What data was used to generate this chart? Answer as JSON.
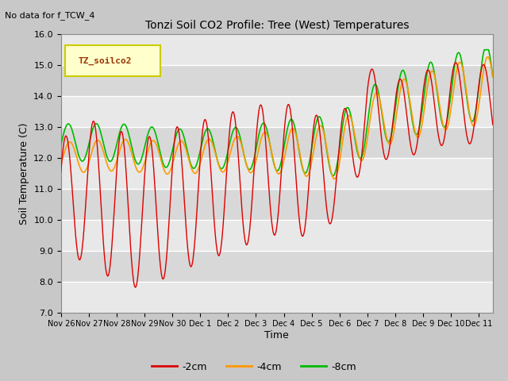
{
  "title": "Tonzi Soil CO2 Profile: Tree (West) Temperatures",
  "subtitle": "No data for f_TCW_4",
  "ylabel": "Soil Temperature (C)",
  "xlabel": "Time",
  "legend_label": "TZ_soilco2",
  "ylim": [
    7.0,
    16.0
  ],
  "yticks": [
    7.0,
    8.0,
    9.0,
    10.0,
    11.0,
    12.0,
    13.0,
    14.0,
    15.0,
    16.0
  ],
  "xtick_labels": [
    "Nov 26",
    "Nov 27",
    "Nov 28",
    "Nov 29",
    "Nov 30",
    "Dec 1",
    "Dec 2",
    "Dec 3",
    "Dec 4",
    "Dec 5",
    "Dec 6",
    "Dec 7",
    "Dec 8",
    "Dec 9",
    "Dec 10",
    "Dec 11"
  ],
  "line_colors": {
    "m2cm": "#dd0000",
    "m4cm": "#ff9900",
    "m8cm": "#00bb00"
  },
  "line_labels": [
    "-2cm",
    "-4cm",
    "-8cm"
  ],
  "legend_box_color": "#ffffcc",
  "legend_box_edge": "#cccc00",
  "figsize": [
    6.4,
    4.8
  ],
  "dpi": 100,
  "n_days": 15.5,
  "n_points": 900
}
